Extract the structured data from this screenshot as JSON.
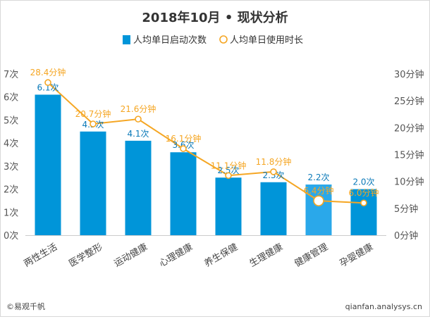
{
  "chart_data": {
    "type": "bar",
    "title": "2018年10月 • 现状分析",
    "categories": [
      "两性生活",
      "医学整形",
      "运动健康",
      "心理健康",
      "养生保健",
      "生理健康",
      "健康管理",
      "孕婴健康"
    ],
    "series": [
      {
        "name": "人均单日启动次数",
        "type": "bar",
        "axis": "left",
        "values": [
          6.1,
          4.5,
          4.1,
          3.6,
          2.5,
          2.3,
          2.2,
          2.0
        ],
        "labels": [
          "6.1次",
          "4.5次",
          "4.1次",
          "3.6次",
          "2.5次",
          "2.3次",
          "2.2次",
          "2.0次"
        ]
      },
      {
        "name": "人均单日使用时长",
        "type": "line",
        "axis": "right",
        "values": [
          28.4,
          20.7,
          21.6,
          16.1,
          11.1,
          11.8,
          6.4,
          6.0
        ],
        "labels": [
          "28.4分钟",
          "20.7分钟",
          "21.6分钟",
          "16.1分钟",
          "11.1分钟",
          "11.8分钟",
          "6.4分钟",
          "6.0分钟"
        ]
      }
    ],
    "left_axis": {
      "ylim": [
        0,
        7
      ],
      "ticks": [
        "0次",
        "1次",
        "2次",
        "3次",
        "4次",
        "5次",
        "6次",
        "7次"
      ]
    },
    "right_axis": {
      "ylim": [
        0,
        30
      ],
      "ticks": [
        "0分钟",
        "5分钟",
        "10分钟",
        "15分钟",
        "20分钟",
        "25分钟",
        "30分钟"
      ]
    },
    "legend_position": "top-center",
    "grid": false,
    "colors": {
      "bar": "#0095d9",
      "bar_highlight": "#2aa8ea",
      "line": "#f5a623",
      "bar_label": "#0a79b8",
      "line_label": "#f5a623",
      "axis_text": "#555555"
    }
  },
  "footer": {
    "source": "©易观千帆",
    "site": "qianfan.analysys.cn"
  }
}
